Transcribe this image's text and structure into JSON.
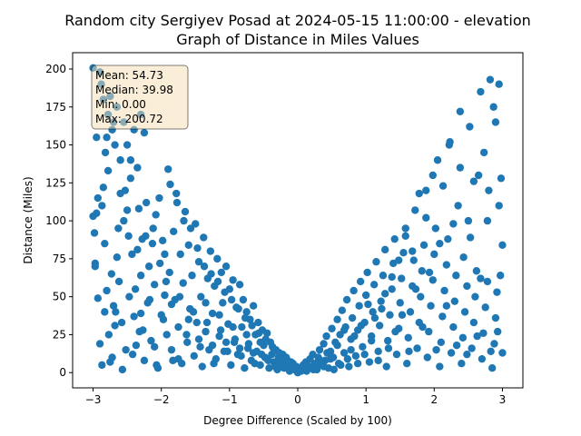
{
  "chart_data": {
    "type": "scatter",
    "title_line1": "Random city Sergiyev Posad at 2024-05-15 11:00:00  - elevation",
    "title_line2": "Graph of Distance in Miles Values",
    "xlabel": "Degree Difference (Scaled by 100)",
    "ylabel": "Distance (Miles)",
    "xlim": [
      -3.3,
      3.3
    ],
    "ylim": [
      -10.04,
      210.76
    ],
    "xticks": [
      -3,
      -2,
      -1,
      0,
      1,
      2,
      3
    ],
    "xtick_labels": [
      "−3",
      "−2",
      "−1",
      "0",
      "1",
      "2",
      "3"
    ],
    "yticks": [
      0,
      25,
      50,
      75,
      100,
      125,
      150,
      175,
      200
    ],
    "ytick_labels": [
      "0",
      "25",
      "50",
      "75",
      "100",
      "125",
      "150",
      "175",
      "200"
    ],
    "grid": false,
    "marker_color": "#1f77b4",
    "stats_box": {
      "mean": "Mean: 54.73",
      "median": "Median: 39.98",
      "min": "Min: 0.00",
      "max": "Max: 200.72",
      "background": "#f5deb3",
      "position": "top-left"
    },
    "points": [
      [
        -3.0,
        200.7
      ],
      [
        -2.95,
        155
      ],
      [
        -2.9,
        198
      ],
      [
        -2.88,
        190
      ],
      [
        -2.85,
        180
      ],
      [
        -2.82,
        145
      ],
      [
        -2.8,
        155
      ],
      [
        -2.78,
        170
      ],
      [
        -2.75,
        182
      ],
      [
        -2.72,
        160
      ],
      [
        -2.7,
        165
      ],
      [
        -2.68,
        150
      ],
      [
        -2.65,
        175
      ],
      [
        -2.6,
        140
      ],
      [
        -2.55,
        165
      ],
      [
        -2.5,
        150
      ],
      [
        -2.45,
        140
      ],
      [
        -2.4,
        160
      ],
      [
        -2.35,
        135
      ],
      [
        -2.3,
        170
      ],
      [
        -2.25,
        158
      ],
      [
        -3.0,
        103
      ],
      [
        -2.98,
        92
      ],
      [
        -2.97,
        72
      ],
      [
        -2.95,
        105
      ],
      [
        -2.93,
        49
      ],
      [
        -2.9,
        19
      ],
      [
        -2.87,
        110
      ],
      [
        -2.85,
        122
      ],
      [
        -2.83,
        40
      ],
      [
        -2.8,
        54
      ],
      [
        -2.78,
        133
      ],
      [
        -2.75,
        7
      ],
      [
        -2.72,
        10
      ],
      [
        -2.7,
        44
      ],
      [
        -2.68,
        31
      ],
      [
        -2.65,
        76
      ],
      [
        -2.62,
        60
      ],
      [
        -2.6,
        118
      ],
      [
        -2.58,
        33
      ],
      [
        -2.55,
        100
      ],
      [
        -2.52,
        15
      ],
      [
        -2.5,
        107
      ],
      [
        -2.48,
        90
      ],
      [
        -2.45,
        128
      ],
      [
        -2.42,
        12
      ],
      [
        -2.4,
        37
      ],
      [
        -2.38,
        55
      ],
      [
        -2.35,
        81
      ],
      [
        -2.32,
        27
      ],
      [
        -2.3,
        64
      ],
      [
        -2.28,
        88
      ],
      [
        -2.25,
        8
      ],
      [
        -2.22,
        112
      ],
      [
        -2.2,
        46
      ],
      [
        -2.18,
        70
      ],
      [
        -2.15,
        21
      ],
      [
        -2.12,
        95
      ],
      [
        -2.1,
        58
      ],
      [
        -2.08,
        104
      ],
      [
        -2.05,
        3
      ],
      [
        -2.02,
        72
      ],
      [
        -2.0,
        38
      ],
      [
        -1.98,
        87
      ],
      [
        -1.95,
        51
      ],
      [
        -1.92,
        25
      ],
      [
        -1.9,
        134
      ],
      [
        -1.88,
        66
      ],
      [
        -1.85,
        15
      ],
      [
        -1.82,
        93
      ],
      [
        -1.8,
        48
      ],
      [
        -1.78,
        118
      ],
      [
        -1.75,
        30
      ],
      [
        -1.72,
        78
      ],
      [
        -1.7,
        6
      ],
      [
        -1.68,
        59
      ],
      [
        -1.65,
        106
      ],
      [
        -1.62,
        20
      ],
      [
        -1.6,
        84
      ],
      [
        -1.58,
        42
      ],
      [
        -1.55,
        64
      ],
      [
        -1.52,
        11
      ],
      [
        -1.5,
        98
      ],
      [
        -1.48,
        33
      ],
      [
        -1.45,
        73
      ],
      [
        -1.42,
        50
      ],
      [
        -1.4,
        4
      ],
      [
        -1.38,
        89
      ],
      [
        -1.35,
        27
      ],
      [
        -1.32,
        62
      ],
      [
        -1.3,
        15
      ],
      [
        -1.28,
        80
      ],
      [
        -1.25,
        39
      ],
      [
        -1.22,
        57
      ],
      [
        -1.2,
        9
      ],
      [
        -1.18,
        75
      ],
      [
        -1.15,
        24
      ],
      [
        -1.12,
        66
      ],
      [
        -1.1,
        46
      ],
      [
        -1.08,
        14
      ],
      [
        -1.05,
        70
      ],
      [
        -1.02,
        32
      ],
      [
        -1.0,
        55
      ],
      [
        -0.98,
        5
      ],
      [
        -0.95,
        61
      ],
      [
        -0.92,
        22
      ],
      [
        -0.9,
        43
      ],
      [
        -0.88,
        12
      ],
      [
        -0.85,
        58
      ],
      [
        -0.82,
        30
      ],
      [
        -0.8,
        48
      ],
      [
        -0.78,
        3
      ],
      [
        -0.75,
        40
      ],
      [
        -0.72,
        19
      ],
      [
        -0.7,
        35
      ],
      [
        -0.68,
        8
      ],
      [
        -0.65,
        44
      ],
      [
        -0.62,
        25
      ],
      [
        -0.6,
        14
      ],
      [
        -0.58,
        33
      ],
      [
        -0.55,
        5
      ],
      [
        -0.52,
        28
      ],
      [
        -0.5,
        18
      ],
      [
        -0.48,
        10
      ],
      [
        -0.45,
        26
      ],
      [
        -0.42,
        3
      ],
      [
        -0.4,
        20
      ],
      [
        -0.38,
        12
      ],
      [
        -0.35,
        7
      ],
      [
        -0.32,
        15
      ],
      [
        -0.3,
        2
      ],
      [
        -0.28,
        10
      ],
      [
        -0.25,
        6
      ],
      [
        -0.22,
        12
      ],
      [
        -0.2,
        3
      ],
      [
        -0.18,
        8
      ],
      [
        -0.15,
        5
      ],
      [
        -0.12,
        1
      ],
      [
        -0.1,
        7
      ],
      [
        -0.08,
        3
      ],
      [
        -0.05,
        2
      ],
      [
        -0.02,
        4
      ],
      [
        -2.3,
        39
      ],
      [
        -2.1,
        17
      ],
      [
        -1.95,
        78
      ],
      [
        -1.85,
        45
      ],
      [
        -1.75,
        9
      ],
      [
        -1.6,
        35
      ],
      [
        -1.45,
        22
      ],
      [
        -1.35,
        46
      ],
      [
        -1.25,
        18
      ],
      [
        -1.15,
        38
      ],
      [
        -1.05,
        20
      ],
      [
        -0.95,
        30
      ],
      [
        -0.85,
        16
      ],
      [
        -0.75,
        25
      ],
      [
        -0.65,
        13
      ],
      [
        -0.55,
        20
      ],
      [
        -0.45,
        9
      ],
      [
        -0.35,
        14
      ],
      [
        -0.25,
        4
      ],
      [
        -0.15,
        8
      ],
      [
        0.0,
        0
      ],
      [
        0.02,
        3
      ],
      [
        0.05,
        1
      ],
      [
        0.08,
        5
      ],
      [
        0.1,
        2
      ],
      [
        0.12,
        7
      ],
      [
        0.15,
        3
      ],
      [
        0.18,
        9
      ],
      [
        0.2,
        4
      ],
      [
        0.22,
        12
      ],
      [
        0.25,
        6
      ],
      [
        0.28,
        2
      ],
      [
        0.3,
        10
      ],
      [
        0.32,
        15
      ],
      [
        0.35,
        5
      ],
      [
        0.38,
        19
      ],
      [
        0.4,
        8
      ],
      [
        0.42,
        24
      ],
      [
        0.45,
        3
      ],
      [
        0.48,
        14
      ],
      [
        0.5,
        29
      ],
      [
        0.52,
        10
      ],
      [
        0.55,
        20
      ],
      [
        0.58,
        35
      ],
      [
        0.6,
        6
      ],
      [
        0.62,
        25
      ],
      [
        0.65,
        41
      ],
      [
        0.68,
        13
      ],
      [
        0.7,
        30
      ],
      [
        0.72,
        48
      ],
      [
        0.75,
        4
      ],
      [
        0.78,
        22
      ],
      [
        0.8,
        36
      ],
      [
        0.82,
        54
      ],
      [
        0.85,
        11
      ],
      [
        0.88,
        28
      ],
      [
        0.9,
        44
      ],
      [
        0.92,
        60
      ],
      [
        0.95,
        17
      ],
      [
        0.98,
        33
      ],
      [
        1.0,
        51
      ],
      [
        1.02,
        66
      ],
      [
        1.05,
        7
      ],
      [
        1.08,
        24
      ],
      [
        1.1,
        40
      ],
      [
        1.12,
        58
      ],
      [
        1.15,
        73
      ],
      [
        1.18,
        14
      ],
      [
        1.2,
        31
      ],
      [
        1.22,
        47
      ],
      [
        1.25,
        64
      ],
      [
        1.28,
        81
      ],
      [
        1.3,
        4
      ],
      [
        1.32,
        21
      ],
      [
        1.35,
        38
      ],
      [
        1.38,
        55
      ],
      [
        1.4,
        72
      ],
      [
        1.42,
        88
      ],
      [
        1.45,
        12
      ],
      [
        1.48,
        29
      ],
      [
        1.5,
        46
      ],
      [
        1.52,
        62
      ],
      [
        1.55,
        79
      ],
      [
        1.58,
        95
      ],
      [
        1.6,
        6
      ],
      [
        1.62,
        23
      ],
      [
        1.65,
        40
      ],
      [
        1.68,
        57
      ],
      [
        1.7,
        74
      ],
      [
        1.72,
        107
      ],
      [
        1.75,
        16
      ],
      [
        1.78,
        33
      ],
      [
        1.8,
        50
      ],
      [
        1.82,
        67
      ],
      [
        1.85,
        84
      ],
      [
        1.88,
        120
      ],
      [
        1.9,
        10
      ],
      [
        1.92,
        27
      ],
      [
        1.95,
        44
      ],
      [
        1.98,
        61
      ],
      [
        2.0,
        78
      ],
      [
        2.02,
        95
      ],
      [
        2.05,
        140
      ],
      [
        2.08,
        4
      ],
      [
        2.1,
        20
      ],
      [
        2.12,
        37
      ],
      [
        2.15,
        54
      ],
      [
        2.18,
        71
      ],
      [
        2.2,
        88
      ],
      [
        2.22,
        150
      ],
      [
        2.25,
        13
      ],
      [
        2.28,
        30
      ],
      [
        2.3,
        47
      ],
      [
        2.32,
        64
      ],
      [
        2.35,
        110
      ],
      [
        2.38,
        172
      ],
      [
        2.4,
        6
      ],
      [
        2.42,
        23
      ],
      [
        2.45,
        40
      ],
      [
        2.48,
        57
      ],
      [
        2.5,
        100
      ],
      [
        2.52,
        162
      ],
      [
        2.55,
        16
      ],
      [
        2.58,
        33
      ],
      [
        2.6,
        50
      ],
      [
        2.62,
        67
      ],
      [
        2.65,
        130
      ],
      [
        2.68,
        185
      ],
      [
        2.7,
        9
      ],
      [
        2.72,
        26
      ],
      [
        2.75,
        43
      ],
      [
        2.78,
        60
      ],
      [
        2.8,
        120
      ],
      [
        2.82,
        193
      ],
      [
        2.85,
        3
      ],
      [
        2.88,
        19
      ],
      [
        2.9,
        36
      ],
      [
        2.92,
        53
      ],
      [
        2.95,
        110
      ],
      [
        2.98,
        128
      ],
      [
        3.0,
        84
      ],
      [
        2.95,
        190
      ],
      [
        2.9,
        165
      ],
      [
        2.97,
        64
      ],
      [
        3.0,
        13
      ],
      [
        2.93,
        27
      ],
      [
        2.87,
        175
      ],
      [
        2.83,
        14
      ],
      [
        2.78,
        100
      ],
      [
        2.73,
        145
      ],
      [
        2.68,
        62
      ],
      [
        2.63,
        24
      ],
      [
        2.58,
        126
      ],
      [
        2.53,
        89
      ],
      [
        2.48,
        12
      ],
      [
        2.43,
        76
      ],
      [
        2.38,
        135
      ],
      [
        2.33,
        18
      ],
      [
        2.28,
        98
      ],
      [
        2.23,
        152
      ],
      [
        2.18,
        44
      ],
      [
        2.13,
        123
      ],
      [
        2.08,
        85
      ],
      [
        2.03,
        15
      ],
      [
        1.98,
        130
      ],
      [
        1.93,
        66
      ],
      [
        1.88,
        102
      ],
      [
        1.83,
        30
      ],
      [
        1.78,
        118
      ],
      [
        1.73,
        55
      ],
      [
        1.68,
        80
      ],
      [
        1.63,
        14
      ],
      [
        1.58,
        90
      ],
      [
        1.53,
        38
      ],
      [
        1.48,
        74
      ],
      [
        1.43,
        27
      ],
      [
        1.38,
        63
      ],
      [
        1.33,
        16
      ],
      [
        1.28,
        52
      ],
      [
        1.23,
        42
      ],
      [
        1.18,
        8
      ],
      [
        1.13,
        36
      ],
      [
        1.08,
        21
      ],
      [
        1.03,
        45
      ],
      [
        0.98,
        12
      ],
      [
        0.93,
        31
      ],
      [
        0.88,
        6
      ],
      [
        0.83,
        24
      ],
      [
        0.78,
        15
      ],
      [
        0.73,
        9
      ],
      [
        0.68,
        28
      ],
      [
        0.63,
        5
      ],
      [
        0.58,
        18
      ],
      [
        0.53,
        2
      ],
      [
        0.48,
        9
      ],
      [
        0.43,
        13
      ],
      [
        0.38,
        4
      ],
      [
        0.33,
        8
      ],
      [
        0.28,
        6
      ],
      [
        0.23,
        2
      ],
      [
        0.18,
        4
      ],
      [
        0.13,
        1
      ],
      [
        0.08,
        3
      ],
      [
        0.03,
        1
      ],
      [
        -0.07,
        6
      ],
      [
        -0.13,
        4
      ],
      [
        -0.17,
        10
      ],
      [
        -0.23,
        7
      ],
      [
        -0.27,
        13
      ],
      [
        -0.33,
        4
      ],
      [
        -0.37,
        17
      ],
      [
        -0.43,
        8
      ],
      [
        -0.47,
        22
      ],
      [
        -0.53,
        12
      ],
      [
        -0.57,
        26
      ],
      [
        -0.63,
        6
      ],
      [
        -0.67,
        31
      ],
      [
        -0.73,
        16
      ],
      [
        -0.77,
        36
      ],
      [
        -0.83,
        11
      ],
      [
        -0.87,
        42
      ],
      [
        -0.93,
        20
      ],
      [
        -0.97,
        48
      ],
      [
        -1.03,
        14
      ],
      [
        -1.07,
        53
      ],
      [
        -1.13,
        28
      ],
      [
        -1.17,
        60
      ],
      [
        -1.23,
        6
      ],
      [
        -1.27,
        65
      ],
      [
        -1.33,
        33
      ],
      [
        -1.37,
        70
      ],
      [
        -1.43,
        17
      ],
      [
        -1.47,
        82
      ],
      [
        -1.53,
        40
      ],
      [
        -1.57,
        95
      ],
      [
        -1.63,
        25
      ],
      [
        -1.67,
        100
      ],
      [
        -1.73,
        50
      ],
      [
        -1.77,
        112
      ],
      [
        -1.83,
        8
      ],
      [
        -1.87,
        124
      ],
      [
        -1.93,
        60
      ],
      [
        -1.97,
        35
      ],
      [
        -2.03,
        115
      ],
      [
        -2.07,
        5
      ],
      [
        -2.13,
        85
      ],
      [
        -2.17,
        48
      ],
      [
        -2.23,
        90
      ],
      [
        -2.27,
        28
      ],
      [
        -2.33,
        108
      ],
      [
        -2.37,
        18
      ],
      [
        -2.43,
        78
      ],
      [
        -2.47,
        50
      ],
      [
        -2.53,
        120
      ],
      [
        -2.57,
        2
      ],
      [
        -2.63,
        95
      ],
      [
        -2.67,
        40
      ],
      [
        -2.73,
        65
      ],
      [
        -2.77,
        25
      ],
      [
        -2.83,
        85
      ],
      [
        -2.87,
        5
      ],
      [
        -2.93,
        115
      ],
      [
        -2.97,
        70
      ]
    ]
  }
}
